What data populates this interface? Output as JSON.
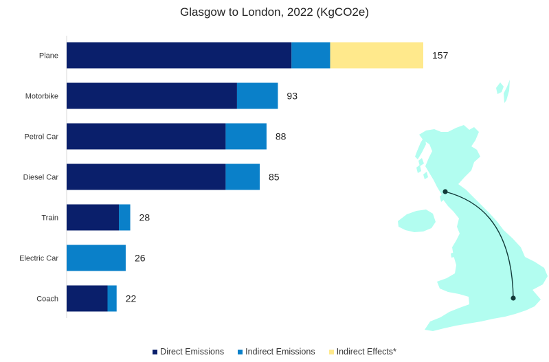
{
  "chart_data": {
    "type": "bar",
    "orientation": "horizontal",
    "stacked": true,
    "title": "Glasgow to London, 2022 (KgCO2e)",
    "xlabel": "",
    "ylabel": "",
    "xlim": [
      0,
      157
    ],
    "grid": false,
    "legend_position": "bottom",
    "categories": [
      "Plane",
      "Motorbike",
      "Petrol Car",
      "Diesel Car",
      "Train",
      "Electric Car",
      "Coach"
    ],
    "totals": [
      157,
      93,
      88,
      85,
      28,
      26,
      22
    ],
    "series": [
      {
        "name": "Direct Emissions",
        "color": "#0a1f6b",
        "values": [
          99,
          75,
          70,
          70,
          23,
          0,
          18
        ]
      },
      {
        "name": "Indirect Emissions",
        "color": "#0a80c9",
        "values": [
          17,
          18,
          18,
          15,
          5,
          26,
          4
        ]
      },
      {
        "name": "Indirect Effects*",
        "color": "#ffe98c",
        "values": [
          41,
          0,
          0,
          0,
          0,
          0,
          0
        ]
      }
    ]
  },
  "map": {
    "land_color": "#b2fdf0",
    "route_color": "#123b39"
  }
}
